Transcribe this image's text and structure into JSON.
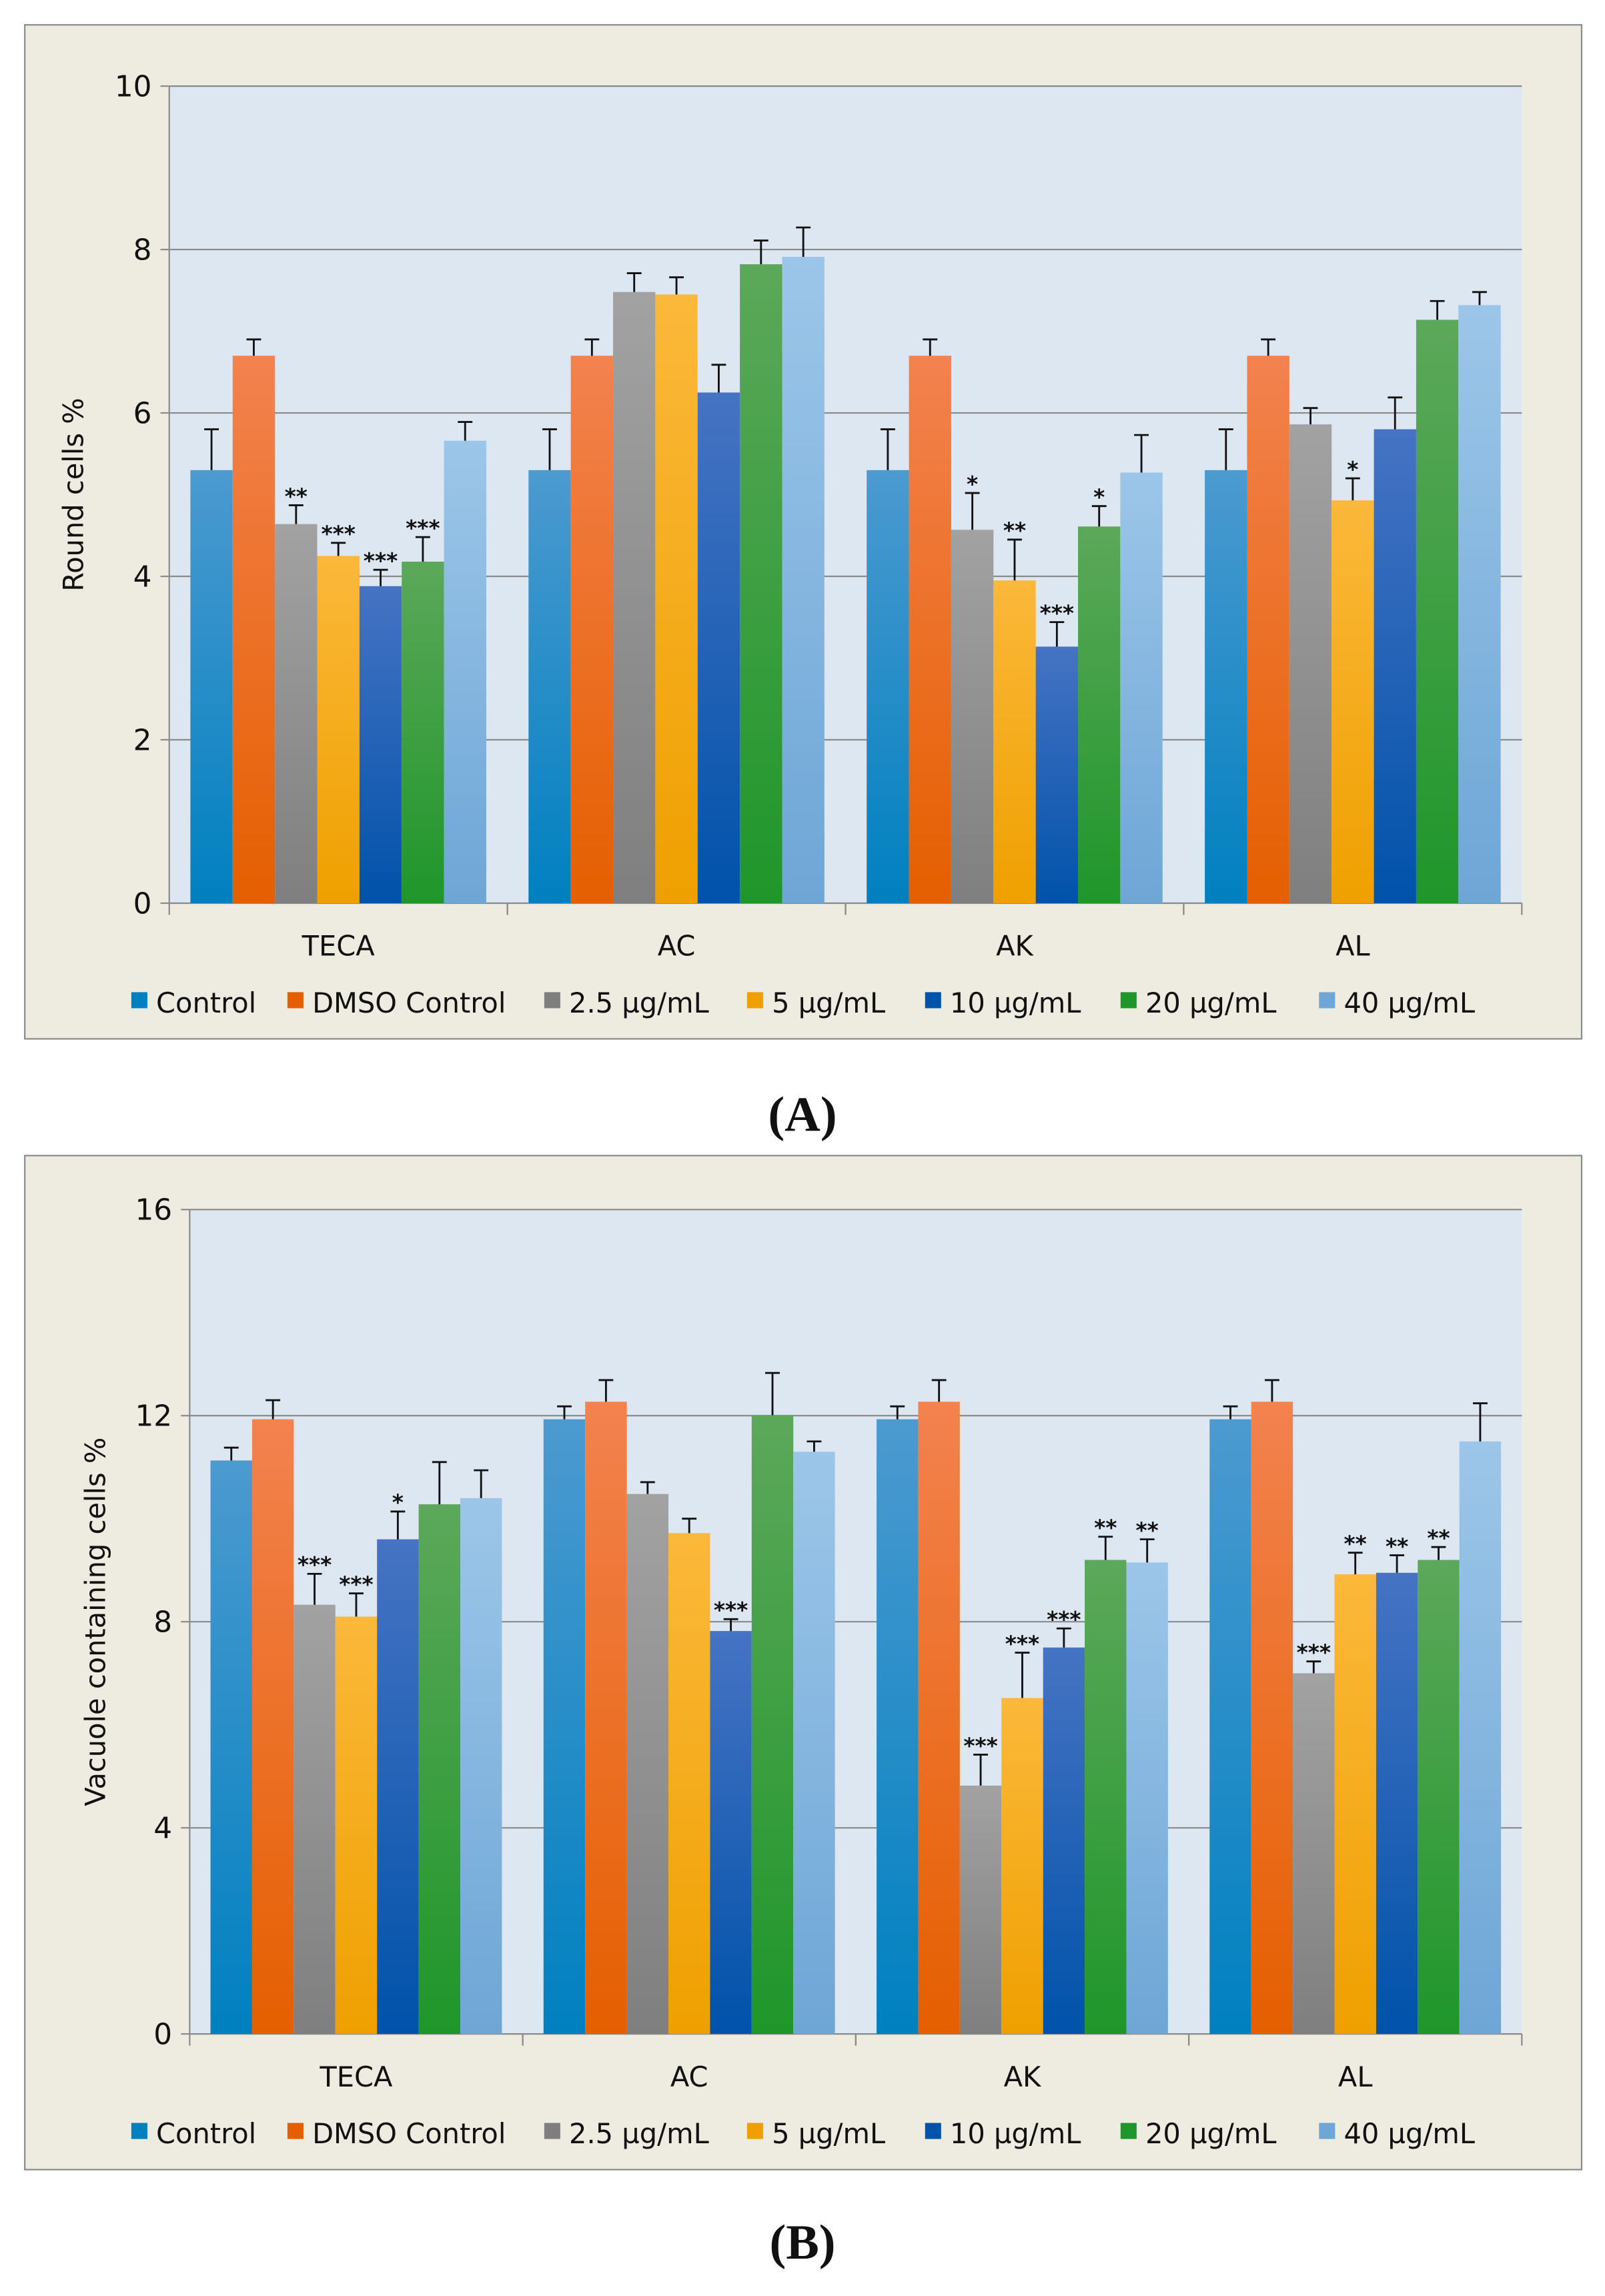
{
  "legend": [
    "Control",
    "DMSO Control",
    "2.5 µg/mL",
    "5 µg/mL",
    "10 µg/mL",
    "20 µg/mL",
    "40 µg/mL"
  ],
  "series_colors": [
    [
      "#4c9ad0",
      "#0080c0"
    ],
    [
      "#f3824f",
      "#e55f00"
    ],
    [
      "#a2a2a2",
      "#7f7f7f"
    ],
    [
      "#fbb83a",
      "#efa000"
    ],
    [
      "#4673c3",
      "#0052aa"
    ],
    [
      "#5ca85a",
      "#1f962a"
    ],
    [
      "#9cc6e9",
      "#6ea6d6"
    ]
  ],
  "chart_data": [
    {
      "panel_label": "(A)",
      "type": "bar",
      "title": "",
      "xlabel": "",
      "ylabel": "Round cells %",
      "ylim": [
        0,
        10
      ],
      "yticks": [
        "0",
        "2",
        "4",
        "6",
        "8",
        "10"
      ],
      "grid": true,
      "legend_position": "bottom",
      "categories": [
        "TECA",
        "AC",
        "AK",
        "AL"
      ],
      "series": [
        {
          "name": "Control",
          "values": [
            5.3,
            5.3,
            5.3,
            5.3
          ],
          "errors": [
            0.5,
            0.5,
            0.5,
            0.5
          ],
          "sig": [
            "",
            "",
            "",
            ""
          ]
        },
        {
          "name": "DMSO Control",
          "values": [
            6.7,
            6.7,
            6.7,
            6.7
          ],
          "errors": [
            0.2,
            0.2,
            0.2,
            0.2
          ],
          "sig": [
            "",
            "",
            "",
            ""
          ]
        },
        {
          "name": "2.5 µg/mL",
          "values": [
            4.64,
            7.48,
            4.57,
            5.86
          ],
          "errors": [
            0.23,
            0.23,
            0.45,
            0.2
          ],
          "sig": [
            "**",
            "",
            "*",
            ""
          ]
        },
        {
          "name": "5 µg/mL",
          "values": [
            4.25,
            7.45,
            3.95,
            4.93
          ],
          "errors": [
            0.16,
            0.21,
            0.5,
            0.27
          ],
          "sig": [
            "***",
            "",
            "**",
            "*"
          ]
        },
        {
          "name": "10 µg/mL",
          "values": [
            3.88,
            6.25,
            3.14,
            5.8
          ],
          "errors": [
            0.2,
            0.34,
            0.3,
            0.39
          ],
          "sig": [
            "***",
            "",
            "***",
            ""
          ]
        },
        {
          "name": "20 µg/mL",
          "values": [
            4.18,
            7.82,
            4.61,
            7.14
          ],
          "errors": [
            0.3,
            0.29,
            0.25,
            0.23
          ],
          "sig": [
            "***",
            "",
            "*",
            ""
          ]
        },
        {
          "name": "40 µg/mL",
          "values": [
            5.66,
            7.91,
            5.27,
            7.32
          ],
          "errors": [
            0.23,
            0.36,
            0.46,
            0.16
          ],
          "sig": [
            "",
            "",
            "",
            ""
          ]
        }
      ]
    },
    {
      "panel_label": "(B)",
      "type": "bar",
      "title": "",
      "xlabel": "",
      "ylabel": "Vacuole containing cells %",
      "ylim": [
        0,
        16
      ],
      "yticks": [
        "0",
        "4",
        "8",
        "12",
        "16"
      ],
      "grid": true,
      "legend_position": "bottom",
      "categories": [
        "TECA",
        "AC",
        "AK",
        "AL"
      ],
      "series": [
        {
          "name": "Control",
          "values": [
            11.13,
            11.93,
            11.93,
            11.93
          ],
          "errors": [
            0.25,
            0.25,
            0.25,
            0.25
          ],
          "sig": [
            "",
            "",
            "",
            ""
          ]
        },
        {
          "name": "DMSO Control",
          "values": [
            11.93,
            12.27,
            12.27,
            12.27
          ],
          "errors": [
            0.37,
            0.42,
            0.42,
            0.42
          ],
          "sig": [
            "",
            "",
            "",
            ""
          ]
        },
        {
          "name": "2.5 µg/mL",
          "values": [
            8.33,
            10.48,
            4.82,
            7.0
          ],
          "errors": [
            0.6,
            0.23,
            0.6,
            0.23
          ],
          "sig": [
            "***",
            "",
            "***",
            "***"
          ]
        },
        {
          "name": "5 µg/mL",
          "values": [
            8.1,
            9.72,
            6.52,
            8.92
          ],
          "errors": [
            0.45,
            0.28,
            0.88,
            0.42
          ],
          "sig": [
            "***",
            "",
            "***",
            "**"
          ]
        },
        {
          "name": "10 µg/mL",
          "values": [
            9.6,
            7.82,
            7.5,
            8.95
          ],
          "errors": [
            0.54,
            0.23,
            0.37,
            0.34
          ],
          "sig": [
            "*",
            "***",
            "***",
            "**"
          ]
        },
        {
          "name": "20 µg/mL",
          "values": [
            10.28,
            12.01,
            9.2,
            9.2
          ],
          "errors": [
            0.82,
            0.82,
            0.45,
            0.25
          ],
          "sig": [
            "",
            "",
            "**",
            "**"
          ]
        },
        {
          "name": "40 µg/mL",
          "values": [
            10.4,
            11.3,
            9.15,
            11.5
          ],
          "errors": [
            0.54,
            0.2,
            0.45,
            0.74
          ],
          "sig": [
            "",
            "",
            "**",
            ""
          ]
        }
      ]
    }
  ]
}
